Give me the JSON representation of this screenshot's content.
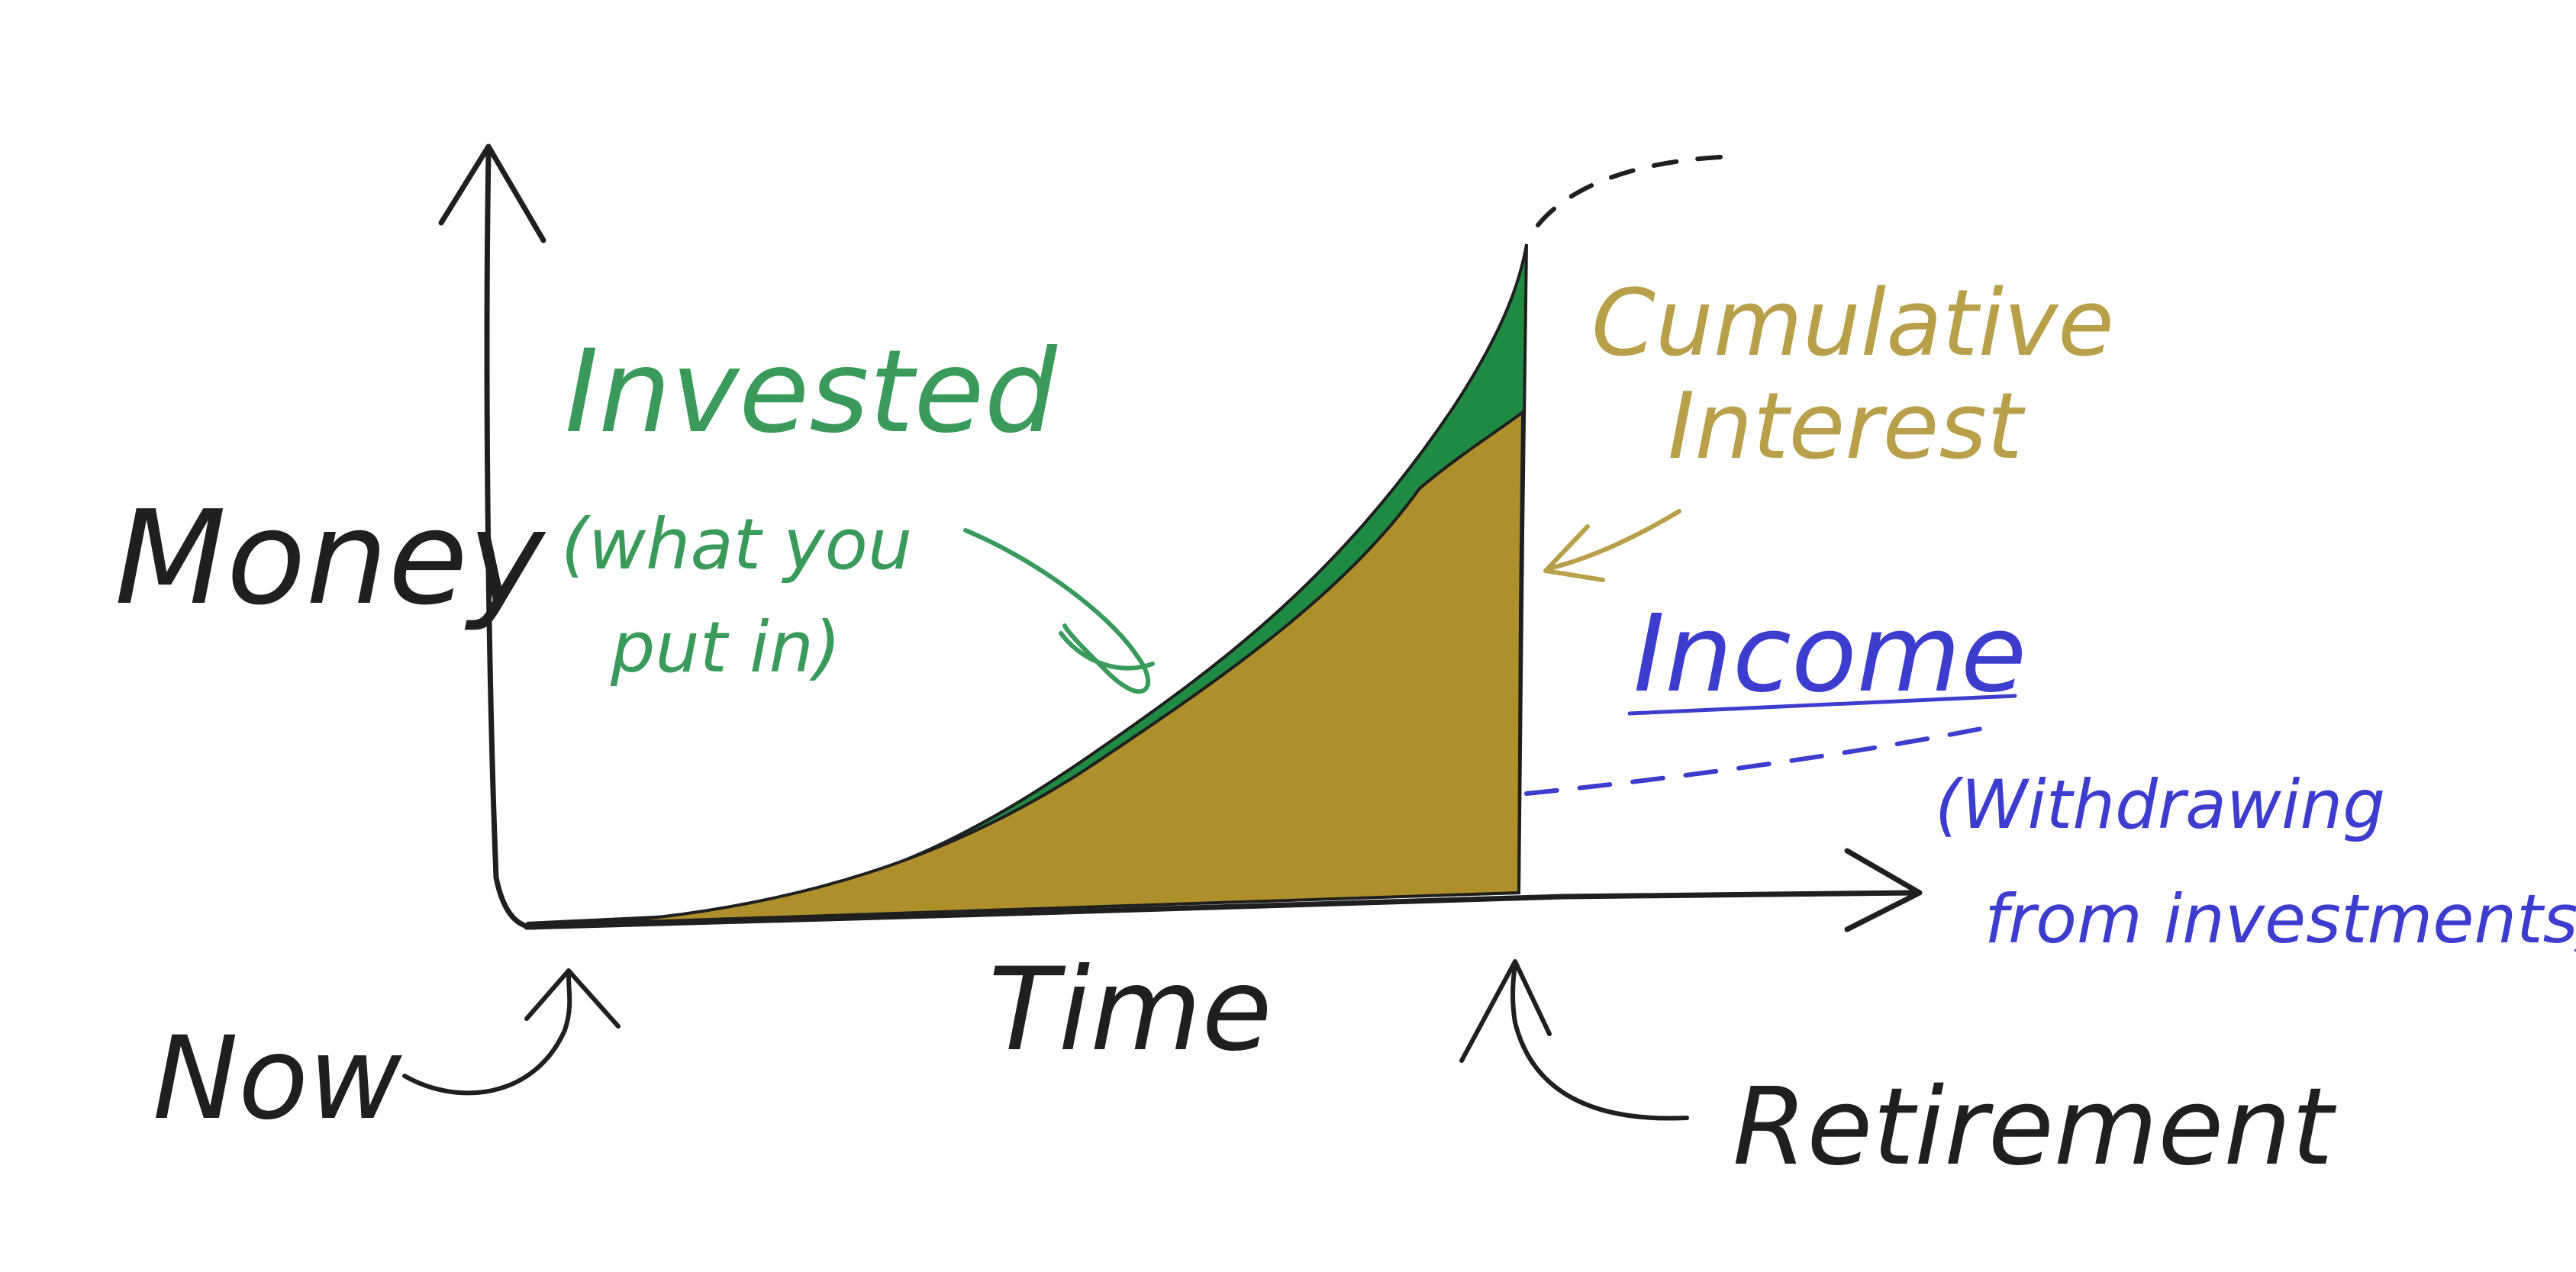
{
  "labels": {
    "y_axis": "Money",
    "x_axis": "Time",
    "now": "Now",
    "retirement": "Retirement",
    "invested_title": "Invested",
    "invested_note_line1": "(what you",
    "invested_note_line2": "put in)",
    "interest_line1": "Cumulative",
    "interest_line2": "Interest",
    "income_title": "Income",
    "income_note_line1": "(Withdrawing",
    "income_note_line2": "from investments)"
  },
  "colors": {
    "ink": "#1f1f1f",
    "invested_fill": "#1f8a43",
    "interest_fill": "#ae8f2a",
    "invested_text": "#3a9a5c",
    "interest_text": "#b8a04a",
    "income_text": "#3c3ccf",
    "background": "#ffffff"
  }
}
